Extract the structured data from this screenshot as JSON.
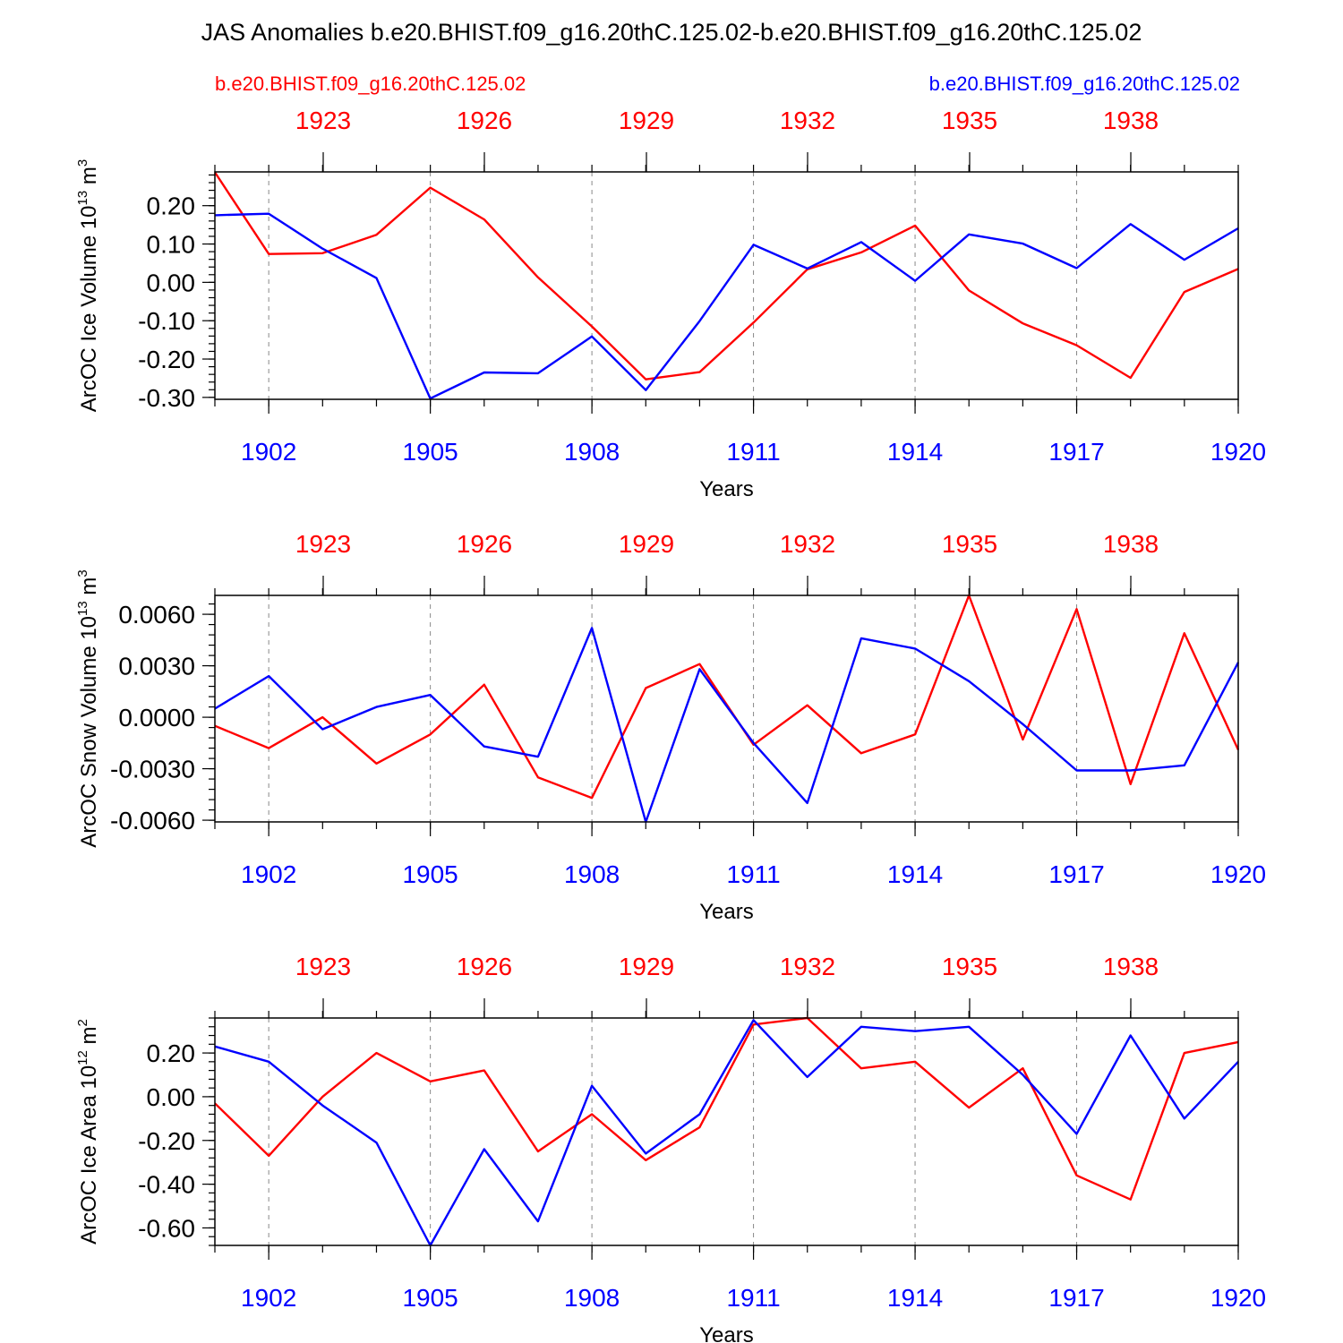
{
  "chart_data": [
    {
      "type": "line",
      "title": "JAS Anomalies b.e20.BHIST.f09_g16.20thC.125.02-b.e20.BHIST.f09_g16.20thC.125.02",
      "ylabel": "ArcOC Ice Volume 10",
      "ylabel_exp": "13",
      "ylabel_unit": " m",
      "ylabel_unit_exp": "3",
      "xlabel": "Years",
      "x_bottom": [
        1901,
        1902,
        1903,
        1904,
        1905,
        1906,
        1907,
        1908,
        1909,
        1910,
        1911,
        1912,
        1913,
        1914,
        1915,
        1916,
        1917,
        1918,
        1919,
        1920
      ],
      "x_bottom_ticklabels": [
        "1902",
        "1905",
        "1908",
        "1911",
        "1914",
        "1917",
        "1920"
      ],
      "x_top_ticklabels": [
        "1923",
        "1926",
        "1929",
        "1932",
        "1935",
        "1938"
      ],
      "ylim": [
        -0.305,
        0.288
      ],
      "yticks": [
        -0.3,
        -0.2,
        -0.1,
        0.0,
        0.1,
        0.2
      ],
      "yticklabels": [
        "-0.30",
        "-0.20",
        "-0.10",
        "0.00",
        "0.10",
        "0.20"
      ],
      "series": [
        {
          "name": "b.e20.BHIST.f09_g16.20thC.125.02",
          "axis": "top",
          "color": "#ff0000",
          "values": [
            0.287,
            0.074,
            0.076,
            0.124,
            0.247,
            0.164,
            0.013,
            -0.115,
            -0.253,
            -0.234,
            -0.105,
            0.034,
            0.078,
            0.148,
            -0.021,
            -0.107,
            -0.164,
            -0.249,
            -0.025,
            0.035
          ]
        },
        {
          "name": "b.e20.BHIST.f09_g16.20thC.125.02",
          "axis": "bottom",
          "color": "#0000ff",
          "values": [
            0.175,
            0.179,
            0.088,
            0.011,
            -0.303,
            -0.235,
            -0.237,
            -0.141,
            -0.281,
            -0.101,
            0.098,
            0.036,
            0.105,
            0.004,
            0.125,
            0.101,
            0.037,
            0.152,
            0.059,
            0.141
          ]
        }
      ]
    },
    {
      "type": "line",
      "ylabel": "ArcOC Snow Volume 10",
      "ylabel_exp": "13",
      "ylabel_unit": " m",
      "ylabel_unit_exp": "3",
      "xlabel": "Years",
      "x_bottom": [
        1901,
        1902,
        1903,
        1904,
        1905,
        1906,
        1907,
        1908,
        1909,
        1910,
        1911,
        1912,
        1913,
        1914,
        1915,
        1916,
        1917,
        1918,
        1919,
        1920
      ],
      "x_bottom_ticklabels": [
        "1902",
        "1905",
        "1908",
        "1911",
        "1914",
        "1917",
        "1920"
      ],
      "x_top_ticklabels": [
        "1923",
        "1926",
        "1929",
        "1932",
        "1935",
        "1938"
      ],
      "ylim": [
        -0.0061,
        0.0071
      ],
      "yticks": [
        -0.006,
        -0.003,
        0.0,
        0.003,
        0.006
      ],
      "yticklabels": [
        "-0.0060",
        "-0.0030",
        "0.0000",
        "0.0030",
        "0.0060"
      ],
      "series": [
        {
          "name": "b.e20.BHIST.f09_g16.20thC.125.02",
          "axis": "top",
          "color": "#ff0000",
          "values": [
            -0.0005,
            -0.0018,
            0.0,
            -0.0027,
            -0.001,
            0.0019,
            -0.0035,
            -0.0047,
            0.0017,
            0.0031,
            -0.0016,
            0.0007,
            -0.0021,
            -0.001,
            0.0071,
            -0.0013,
            0.0063,
            -0.0039,
            0.0049,
            -0.0019
          ]
        },
        {
          "name": "b.e20.BHIST.f09_g16.20thC.125.02",
          "axis": "bottom",
          "color": "#0000ff",
          "values": [
            0.0005,
            0.0024,
            -0.0007,
            0.0006,
            0.0013,
            -0.0017,
            -0.0023,
            0.0052,
            -0.0061,
            0.0028,
            -0.0015,
            -0.005,
            0.0046,
            0.004,
            0.0021,
            -0.0004,
            -0.0031,
            -0.0031,
            -0.0028,
            0.0032
          ]
        }
      ]
    },
    {
      "type": "line",
      "ylabel": "ArcOC Ice Area 10",
      "ylabel_exp": "12",
      "ylabel_unit": " m",
      "ylabel_unit_exp": "2",
      "xlabel": "Years",
      "x_bottom": [
        1901,
        1902,
        1903,
        1904,
        1905,
        1906,
        1907,
        1908,
        1909,
        1910,
        1911,
        1912,
        1913,
        1914,
        1915,
        1916,
        1917,
        1918,
        1919,
        1920
      ],
      "x_bottom_ticklabels": [
        "1902",
        "1905",
        "1908",
        "1911",
        "1914",
        "1917",
        "1920"
      ],
      "x_top_ticklabels": [
        "1923",
        "1926",
        "1929",
        "1932",
        "1935",
        "1938"
      ],
      "ylim": [
        -0.68,
        0.36
      ],
      "yticks": [
        -0.6,
        -0.4,
        -0.2,
        0.0,
        0.2
      ],
      "yticklabels": [
        "-0.60",
        "-0.40",
        "-0.20",
        "0.00",
        "0.20"
      ],
      "series": [
        {
          "name": "b.e20.BHIST.f09_g16.20thC.125.02",
          "axis": "top",
          "color": "#ff0000",
          "values": [
            -0.03,
            -0.27,
            0.0,
            0.2,
            0.07,
            0.12,
            -0.25,
            -0.08,
            -0.29,
            -0.14,
            0.33,
            0.36,
            0.13,
            0.16,
            -0.05,
            0.13,
            -0.36,
            -0.47,
            0.2,
            0.25
          ]
        },
        {
          "name": "b.e20.BHIST.f09_g16.20thC.125.02",
          "axis": "bottom",
          "color": "#0000ff",
          "values": [
            0.23,
            0.16,
            -0.04,
            -0.21,
            -0.68,
            -0.24,
            -0.57,
            0.05,
            -0.26,
            -0.08,
            0.35,
            0.09,
            0.32,
            0.3,
            0.32,
            0.1,
            -0.17,
            0.28,
            -0.1,
            0.16
          ]
        }
      ]
    }
  ]
}
